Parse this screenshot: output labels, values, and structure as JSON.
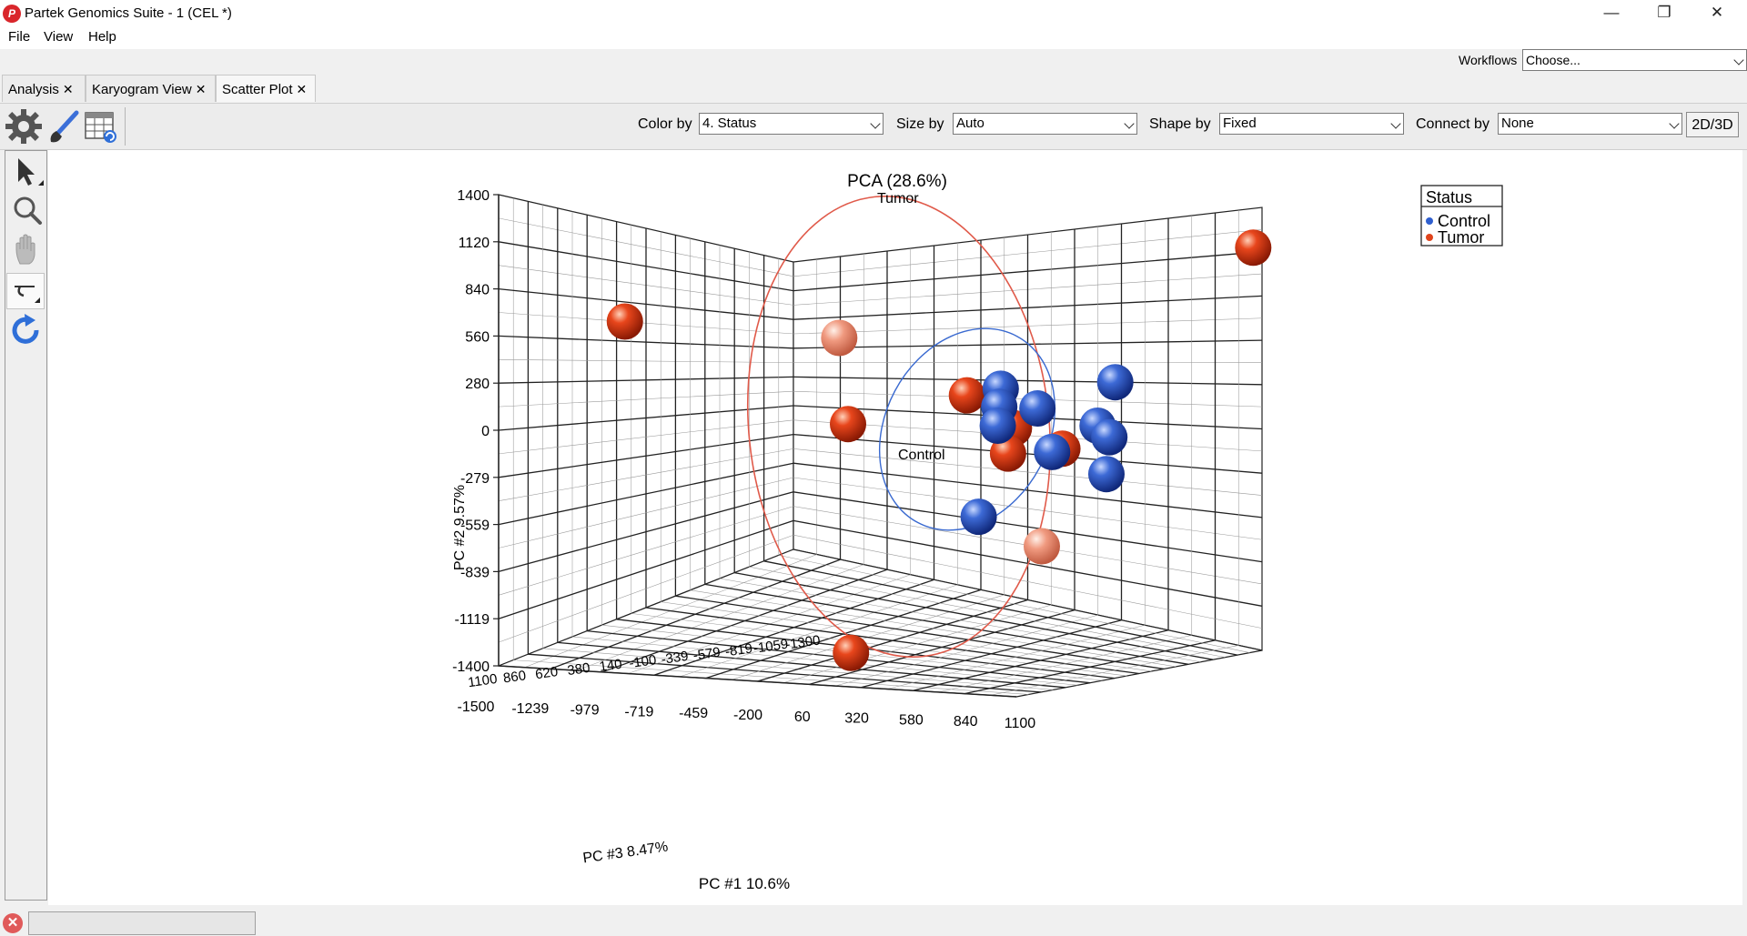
{
  "window": {
    "title": "Partek Genomics Suite - 1 (CEL *)"
  },
  "menu": [
    "File",
    "View",
    "Help"
  ],
  "workflows": {
    "label": "Workflows",
    "value": "Choose..."
  },
  "tabs": [
    {
      "label": "Analysis"
    },
    {
      "label": "Karyogram View"
    },
    {
      "label": "Scatter Plot"
    }
  ],
  "toolbar": {
    "color_by_label": "Color by",
    "color_by_value": "4. Status",
    "size_by_label": "Size by",
    "size_by_value": "Auto",
    "shape_by_label": "Shape by",
    "shape_by_value": "Fixed",
    "connect_by_label": "Connect by",
    "connect_by_value": "None",
    "dim_button": "2D/3D"
  },
  "tools": [
    "pointer-icon",
    "zoom-icon",
    "pan-hand-icon",
    "rotate-mode-icon",
    "reset-rotation-icon"
  ],
  "chart_data": {
    "type": "scatter",
    "title": "PCA (28.6%)",
    "xlabel": "PC #1 10.6%",
    "ylabel": "PC #2 9.57%",
    "zlabel": "PC #3 8.47%",
    "y_ticks": [
      "1400",
      "1120",
      "840",
      "560",
      "280",
      "0",
      "-279",
      "-559",
      "-839",
      "-1119",
      "-1400"
    ],
    "x_ticks": [
      "-1500",
      "-1239",
      "-979",
      "-719",
      "-459",
      "-200",
      "60",
      "320",
      "580",
      "840",
      "1100"
    ],
    "z_ticks": [
      "1100",
      "860",
      "620",
      "380",
      "140",
      "-100",
      "-339",
      "-579",
      "-819",
      "-1059",
      "-1300"
    ],
    "ylim": [
      -1400,
      1400
    ],
    "xlim": [
      -1500,
      1100
    ],
    "legend": {
      "title": "Status",
      "position": "top-right"
    },
    "colors": {
      "Control": "#2f5fcf",
      "Tumor": "#e0441c"
    },
    "ellipse_labels": [
      "Tumor",
      "Control"
    ],
    "series": [
      {
        "name": "Control",
        "points": [
          {
            "x": 210,
            "y": 250
          },
          {
            "x": 205,
            "y": 140
          },
          {
            "x": 335,
            "y": 130
          },
          {
            "x": 200,
            "y": 25
          },
          {
            "x": 540,
            "y": 25
          },
          {
            "x": 600,
            "y": 290
          },
          {
            "x": 580,
            "y": -45
          },
          {
            "x": 385,
            "y": -135
          },
          {
            "x": 570,
            "y": -270
          },
          {
            "x": 135,
            "y": -530
          }
        ]
      },
      {
        "name": "Tumor",
        "points": [
          {
            "x": -1070,
            "y": 660,
            "faded": false
          },
          {
            "x": -340,
            "y": 560,
            "faded": true
          },
          {
            "x": 1070,
            "y": 1110,
            "faded": false
          },
          {
            "x": -310,
            "y": 35,
            "faded": false
          },
          {
            "x": 95,
            "y": 210,
            "faded": false
          },
          {
            "x": 255,
            "y": 10,
            "faded": false
          },
          {
            "x": 235,
            "y": -145,
            "faded": false
          },
          {
            "x": 420,
            "y": -115,
            "faded": false
          },
          {
            "x": 350,
            "y": -710,
            "faded": true
          },
          {
            "x": -300,
            "y": -1360,
            "faded": false
          }
        ]
      }
    ]
  }
}
